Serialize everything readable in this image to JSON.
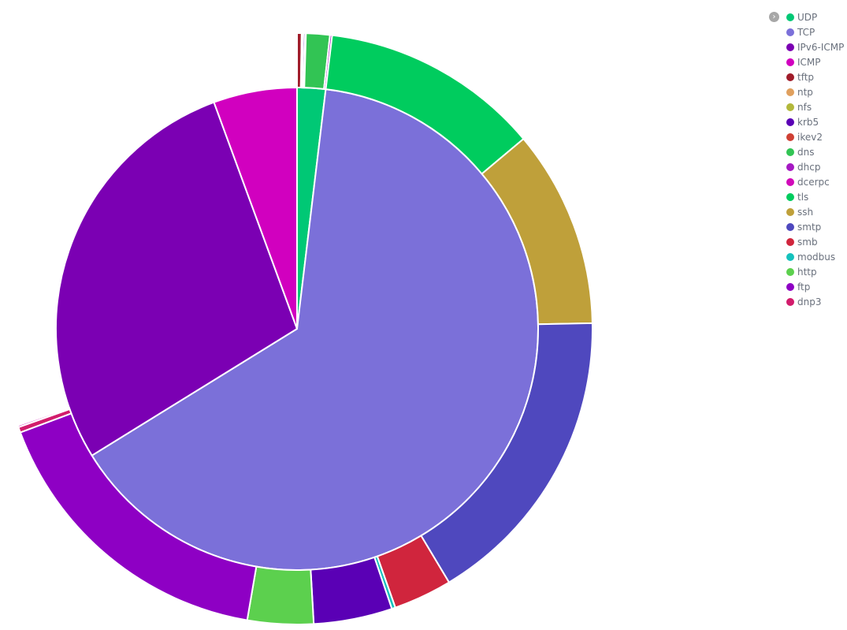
{
  "chart_data": {
    "type": "pie",
    "subtype": "sunburst",
    "title": "",
    "legend_position": "top-right",
    "legend": [
      {
        "label": "UDP",
        "color": "#00c875"
      },
      {
        "label": "TCP",
        "color": "#7b70d9"
      },
      {
        "label": "IPv6-ICMP",
        "color": "#7b00b3"
      },
      {
        "label": "ICMP",
        "color": "#d100bf"
      },
      {
        "label": "tftp",
        "color": "#a01c2a"
      },
      {
        "label": "ntp",
        "color": "#e0a05e"
      },
      {
        "label": "nfs",
        "color": "#b2b83b"
      },
      {
        "label": "krb5",
        "color": "#5a00b5"
      },
      {
        "label": "ikev2",
        "color": "#cf4034"
      },
      {
        "label": "dns",
        "color": "#32c454"
      },
      {
        "label": "dhcp",
        "color": "#a519c3"
      },
      {
        "label": "dcerpc",
        "color": "#d10ab9"
      },
      {
        "label": "tls",
        "color": "#00cc5e"
      },
      {
        "label": "ssh",
        "color": "#bfa03a"
      },
      {
        "label": "smtp",
        "color": "#4f48be"
      },
      {
        "label": "smb",
        "color": "#d0253d"
      },
      {
        "label": "modbus",
        "color": "#15c2bd"
      },
      {
        "label": "http",
        "color": "#5cd04e"
      },
      {
        "label": "ftp",
        "color": "#8e00c4"
      },
      {
        "label": "dnp3",
        "color": "#d21c6c"
      }
    ],
    "inner_ring": [
      {
        "name": "UDP",
        "value": 1.9
      },
      {
        "name": "TCP",
        "value": 64.3
      },
      {
        "name": "IPv6-ICMP",
        "value": 28.2
      },
      {
        "name": "ICMP",
        "value": 5.6
      }
    ],
    "outer_ring": [
      {
        "name": "tftp",
        "parent": "UDP",
        "value": 0.25
      },
      {
        "name": "ntp",
        "parent": "UDP",
        "value": 0.05
      },
      {
        "name": "nfs",
        "parent": "UDP",
        "value": 0.04
      },
      {
        "name": "krb5",
        "parent": "UDP",
        "value": 0.1
      },
      {
        "name": "ikev2",
        "parent": "UDP",
        "value": 0.04
      },
      {
        "name": "dns",
        "parent": "UDP",
        "value": 1.3
      },
      {
        "name": "dhcp",
        "parent": "UDP",
        "value": 0.12
      },
      {
        "name": "tls",
        "parent": "TCP",
        "value": 12.0
      },
      {
        "name": "ssh",
        "parent": "TCP",
        "value": 10.8
      },
      {
        "name": "smtp",
        "parent": "TCP",
        "value": 16.7
      },
      {
        "name": "smb",
        "parent": "TCP",
        "value": 3.2
      },
      {
        "name": "modbus",
        "parent": "TCP",
        "value": 0.2
      },
      {
        "name": "krb5",
        "parent": "TCP",
        "value": 4.3
      },
      {
        "name": "http",
        "parent": "TCP",
        "value": 3.6
      },
      {
        "name": "ftp",
        "parent": "TCP",
        "value": 16.6
      },
      {
        "name": "dnp3",
        "parent": "TCP",
        "value": 0.3
      },
      {
        "name": "dcerpc",
        "parent": "TCP",
        "value": 0.1
      }
    ]
  },
  "legend_toggle_icon": "chevron-right-icon"
}
